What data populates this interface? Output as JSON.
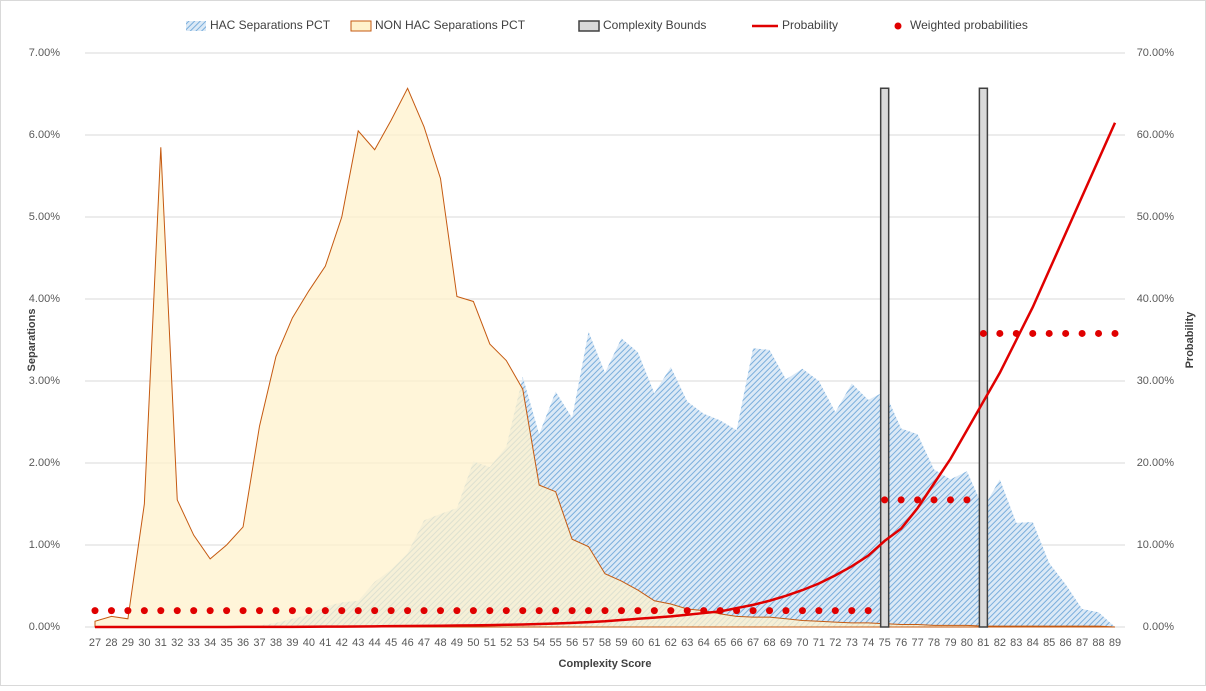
{
  "chart_data": {
    "type": "combo",
    "x_label": "Complexity Score",
    "y_label": "Separations",
    "y2_label": "Probability",
    "categories": [
      "27",
      "28",
      "29",
      "30",
      "31",
      "32",
      "33",
      "34",
      "35",
      "36",
      "37",
      "38",
      "39",
      "40",
      "41",
      "42",
      "43",
      "44",
      "45",
      "46",
      "47",
      "48",
      "49",
      "50",
      "51",
      "52",
      "53",
      "54",
      "55",
      "56",
      "57",
      "58",
      "59",
      "60",
      "61",
      "62",
      "63",
      "64",
      "65",
      "66",
      "67",
      "68",
      "69",
      "70",
      "71",
      "72",
      "73",
      "74",
      "75",
      "76",
      "77",
      "78",
      "79",
      "80",
      "81",
      "82",
      "83",
      "84",
      "85",
      "86",
      "87",
      "88",
      "89"
    ],
    "ylim": [
      0,
      7
    ],
    "yticks": [
      {
        "value": 0,
        "label": "0.00%"
      },
      {
        "value": 1,
        "label": "1.00%"
      },
      {
        "value": 2,
        "label": "2.00%"
      },
      {
        "value": 3,
        "label": "3.00%"
      },
      {
        "value": 4,
        "label": "4.00%"
      },
      {
        "value": 5,
        "label": "5.00%"
      },
      {
        "value": 6,
        "label": "6.00%"
      },
      {
        "value": 7,
        "label": "7.00%"
      }
    ],
    "y2lim": [
      0,
      70
    ],
    "y2ticks": [
      {
        "value": 0,
        "label": "0.00%"
      },
      {
        "value": 10,
        "label": "10.00%"
      },
      {
        "value": 20,
        "label": "20.00%"
      },
      {
        "value": 30,
        "label": "30.00%"
      },
      {
        "value": 40,
        "label": "40.00%"
      },
      {
        "value": 50,
        "label": "50.00%"
      },
      {
        "value": 60,
        "label": "60.00%"
      },
      {
        "value": 70,
        "label": "70.00%"
      }
    ],
    "grid": true,
    "legend": "top",
    "series": [
      {
        "name": "HAC Separations PCT",
        "type": "area",
        "color": "#9dc3e6",
        "values": [
          0,
          0,
          0,
          0,
          0,
          0,
          0,
          0,
          0,
          0.01,
          0.02,
          0.05,
          0.1,
          0.15,
          0.25,
          0.3,
          0.32,
          0.55,
          0.7,
          0.9,
          1.3,
          1.38,
          1.45,
          2.02,
          1.95,
          2.2,
          3.05,
          2.35,
          2.87,
          2.55,
          3.6,
          3.1,
          3.52,
          3.35,
          2.85,
          3.17,
          2.75,
          2.6,
          2.52,
          2.4,
          3.4,
          3.38,
          3.02,
          3.15,
          3.0,
          2.62,
          2.97,
          2.77,
          2.87,
          2.42,
          2.35,
          1.92,
          1.8,
          1.9,
          1.45,
          1.8,
          1.27,
          1.28,
          0.78,
          0.52,
          0.22,
          0.18,
          0
        ]
      },
      {
        "name": "NON HAC Separations PCT",
        "type": "area",
        "color": "#c55a11",
        "values": [
          0.07,
          0.13,
          0.1,
          1.5,
          5.85,
          1.55,
          1.12,
          0.83,
          1.0,
          1.22,
          2.45,
          3.3,
          3.77,
          4.1,
          4.4,
          5.0,
          6.05,
          5.82,
          6.18,
          6.57,
          6.1,
          5.47,
          4.03,
          3.97,
          3.45,
          3.25,
          2.9,
          1.73,
          1.65,
          1.07,
          0.98,
          0.65,
          0.56,
          0.45,
          0.32,
          0.28,
          0.22,
          0.2,
          0.16,
          0.13,
          0.12,
          0.12,
          0.1,
          0.08,
          0.07,
          0.06,
          0.05,
          0.05,
          0.04,
          0.03,
          0.03,
          0.02,
          0.02,
          0.02,
          0.01,
          0.01,
          0.01,
          0.01,
          0.01,
          0.01,
          0.01,
          0.01,
          0
        ]
      },
      {
        "name": "Complexity Bounds",
        "type": "bar",
        "color": "#404040",
        "values": [
          null,
          null,
          null,
          null,
          null,
          null,
          null,
          null,
          null,
          null,
          null,
          null,
          null,
          null,
          null,
          null,
          null,
          null,
          null,
          null,
          null,
          null,
          null,
          null,
          null,
          null,
          null,
          null,
          null,
          null,
          null,
          null,
          null,
          null,
          null,
          null,
          null,
          null,
          null,
          null,
          null,
          null,
          null,
          null,
          null,
          null,
          null,
          null,
          6.57,
          null,
          null,
          null,
          null,
          null,
          6.57,
          null,
          null,
          null,
          null,
          null,
          null,
          null,
          null
        ]
      },
      {
        "name": "Probability",
        "type": "line",
        "axis": "y2",
        "color": "#e00000",
        "values": [
          0,
          0,
          0,
          0,
          0,
          0,
          0,
          0,
          0,
          0.01,
          0.01,
          0.02,
          0.02,
          0.03,
          0.04,
          0.05,
          0.06,
          0.08,
          0.1,
          0.12,
          0.14,
          0.16,
          0.18,
          0.2,
          0.23,
          0.27,
          0.31,
          0.36,
          0.42,
          0.5,
          0.6,
          0.7,
          0.85,
          1.0,
          1.15,
          1.3,
          1.5,
          1.7,
          1.9,
          2.3,
          2.7,
          3.2,
          3.8,
          4.5,
          5.3,
          6.3,
          7.4,
          8.7,
          10.5,
          12,
          14.5,
          17.5,
          20.5,
          24,
          27.5,
          31,
          35,
          39,
          43.5,
          48,
          52.5,
          57,
          61.5
        ]
      },
      {
        "name": "Weighted probabilities",
        "type": "dots",
        "axis": "y2",
        "color": "#e00000",
        "values": [
          2,
          2,
          2,
          2,
          2,
          2,
          2,
          2,
          2,
          2,
          2,
          2,
          2,
          2,
          2,
          2,
          2,
          2,
          2,
          2,
          2,
          2,
          2,
          2,
          2,
          2,
          2,
          2,
          2,
          2,
          2,
          2,
          2,
          2,
          2,
          2,
          2,
          2,
          2,
          2,
          2,
          2,
          2,
          2,
          2,
          2,
          2,
          2,
          15.5,
          15.5,
          15.5,
          15.5,
          15.5,
          15.5,
          35.8,
          35.8,
          35.8,
          35.8,
          35.8,
          35.8,
          35.8,
          35.8,
          35.8
        ]
      }
    ]
  }
}
